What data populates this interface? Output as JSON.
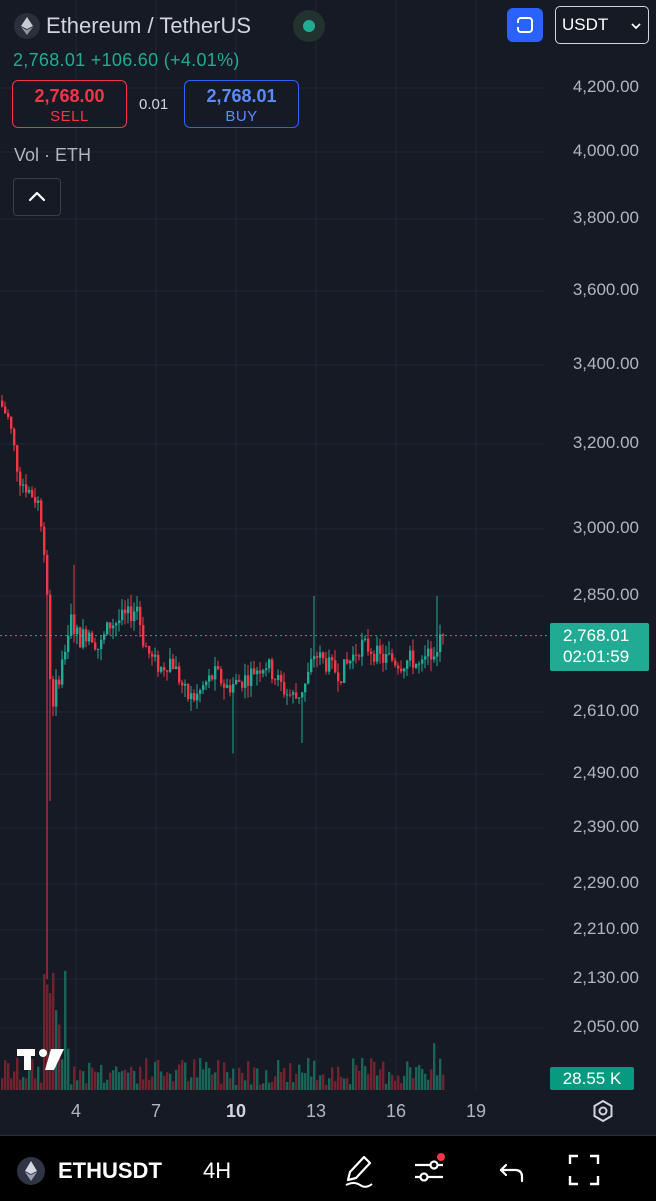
{
  "header": {
    "title": "Ethereum / TetherUS",
    "price_line": "2,768.01  +106.60 (+4.01%)",
    "sell_price": "2,768.00",
    "sell_label": "SELL",
    "spread": "0.01",
    "buy_price": "2,768.01",
    "buy_label": "BUY",
    "volume_indicator": "Vol · ETH",
    "currency_select": "USDT"
  },
  "price_axis": {
    "labels": [
      "4,200.00",
      "4,000.00",
      "3,800.00",
      "3,600.00",
      "3,400.00",
      "3,200.00",
      "3,000.00",
      "2,850.00",
      "2,610.00",
      "2,490.00",
      "2,390.00",
      "2,290.00",
      "2,210.00",
      "2,130.00",
      "2,050.00"
    ],
    "current_price": "2,768.01",
    "countdown": "02:01:59",
    "volume_value": "28.55 K"
  },
  "time_axis": {
    "labels": [
      "4",
      "7",
      "10",
      "13",
      "16",
      "19"
    ]
  },
  "colors": {
    "up": "#22ab94",
    "down": "#f23645",
    "background": "#161a25",
    "grid": "#222634",
    "buy_border": "#2962ff"
  },
  "chart_data": {
    "type": "candlestick",
    "symbol": "ETHUSDT",
    "interval": "4H",
    "ylim": [
      2030,
      4280
    ],
    "x_ticks": [
      "4",
      "7",
      "10",
      "13",
      "16",
      "19"
    ],
    "reference_prices": [
      2850,
      2768.01,
      2610,
      2490,
      2130
    ],
    "last": {
      "close": 2768.01,
      "change": 106.6,
      "change_pct": 4.01
    }
  },
  "bottom_bar": {
    "symbol": "ETHUSDT",
    "timeframe": "4H",
    "icons": [
      "eth-logo-icon",
      "draw-pen-icon",
      "indicators-icon",
      "undo-icon",
      "fullscreen-icon"
    ]
  }
}
